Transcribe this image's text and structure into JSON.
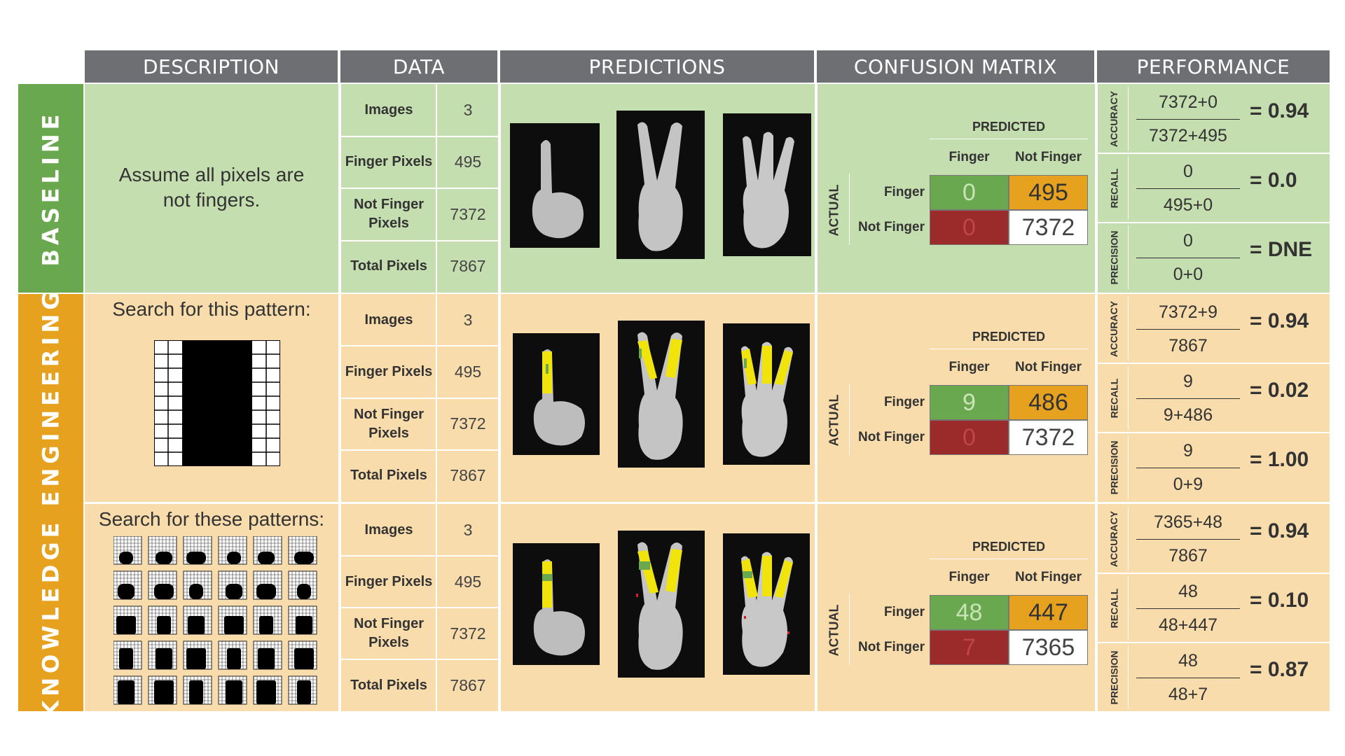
{
  "headers": {
    "description": "DESCRIPTION",
    "data": "DATA",
    "predictions": "PREDICTIONS",
    "confusion": "CONFUSION MATRIX",
    "performance": "PERFORMANCE"
  },
  "side_labels": {
    "baseline": "BASELINE",
    "knowledge": "KNOWLEDGE ENGINEERING"
  },
  "descriptions": {
    "baseline_line1": "Assume all pixels are",
    "baseline_line2": "not fingers.",
    "ke1": "Search for this pattern:",
    "ke2": "Search for these patterns:"
  },
  "data_labels": {
    "images": "Images",
    "finger_pixels": "Finger Pixels",
    "not_finger_line1": "Not Finger",
    "not_finger_line2": "Pixels",
    "total_pixels": "Total Pixels"
  },
  "data_values": {
    "images": "3",
    "finger_pixels": "495",
    "not_finger_pixels": "7372",
    "total_pixels": "7867"
  },
  "cm_labels": {
    "predicted": "PREDICTED",
    "actual": "ACTUAL",
    "finger": "Finger",
    "not_finger": "Not Finger"
  },
  "rows": [
    {
      "cm": {
        "tp": "0",
        "fn": "495",
        "fp": "0",
        "tn": "7372"
      },
      "perf": [
        {
          "label": "ACCURACY",
          "num": "7372+0",
          "den": "7372+495",
          "result": "= 0.94"
        },
        {
          "label": "RECALL",
          "num": "0",
          "den": "495+0",
          "result": "= 0.0"
        },
        {
          "label": "PRECISION",
          "num": "0",
          "den": "0+0",
          "result": "= DNE"
        }
      ]
    },
    {
      "cm": {
        "tp": "9",
        "fn": "486",
        "fp": "0",
        "tn": "7372"
      },
      "perf": [
        {
          "label": "ACCURACY",
          "num": "7372+9",
          "den": "7867",
          "result": "= 0.94"
        },
        {
          "label": "RECALL",
          "num": "9",
          "den": "9+486",
          "result": "= 0.02"
        },
        {
          "label": "PRECISION",
          "num": "9",
          "den": "0+9",
          "result": "= 1.00"
        }
      ]
    },
    {
      "cm": {
        "tp": "48",
        "fn": "447",
        "fp": "7",
        "tn": "7365"
      },
      "perf": [
        {
          "label": "ACCURACY",
          "num": "7365+48",
          "den": "7867",
          "result": "= 0.94"
        },
        {
          "label": "RECALL",
          "num": "48",
          "den": "48+447",
          "result": "= 0.10"
        },
        {
          "label": "PRECISION",
          "num": "48",
          "den": "48+7",
          "result": "= 0.87"
        }
      ]
    }
  ],
  "colors": {
    "header": "#6e6f73",
    "baseline": "#6aa84f",
    "knowledge": "#e6a21e",
    "baseline_bg": "#c5deb0",
    "knowledge_bg": "#f8dcac",
    "true_positive": "#6aa84f",
    "false_negative": "#e6a21e",
    "false_positive": "#9b2b2b",
    "finger_highlight": "#f1e40a"
  }
}
